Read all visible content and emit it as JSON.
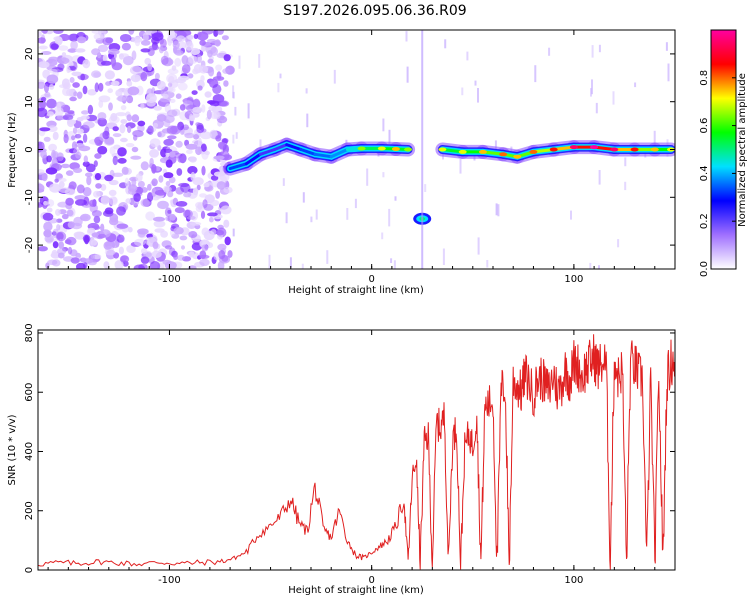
{
  "title": "S197.2026.095.06.36.R09",
  "chart_data": [
    {
      "type": "heatmap",
      "xlabel": "Height of straight line (km)",
      "ylabel": "Frequency (Hz)",
      "xlim": [
        -165,
        150
      ],
      "ylim": [
        -25,
        25
      ],
      "xticks": [
        -100,
        0,
        100
      ],
      "xtick_labels": [
        "-100",
        "0",
        "100"
      ],
      "yticks": [
        -20,
        -10,
        0,
        10,
        20
      ],
      "ytick_labels": [
        "-20",
        "-10",
        "0",
        "10",
        "20"
      ],
      "colorbar": {
        "label": "Normalized spectral amplitude",
        "range": [
          0,
          1
        ],
        "ticks": [
          0.0,
          0.2,
          0.4,
          0.6,
          0.8
        ],
        "tick_labels": [
          "0.0",
          "0.2",
          "0.4",
          "0.6",
          "0.8"
        ],
        "colormap": [
          "#ffffff",
          "#a070ff",
          "#0000ff",
          "#00e0ff",
          "#00ff00",
          "#ffff00",
          "#ff0000",
          "#ff00a0"
        ]
      },
      "noise_region_x": [
        -165,
        -70
      ],
      "gap_x": [
        22,
        30
      ],
      "outlier": {
        "x": 25,
        "y": -14.5,
        "amplitude": 0.5
      },
      "ridge": [
        {
          "x": -70,
          "y": -4,
          "amplitude": 0.35
        },
        {
          "x": -62,
          "y": -3,
          "amplitude": 0.3
        },
        {
          "x": -55,
          "y": -1,
          "amplitude": 0.25
        },
        {
          "x": -48,
          "y": 0,
          "amplitude": 0.2
        },
        {
          "x": -42,
          "y": 1,
          "amplitude": 0.25
        },
        {
          "x": -35,
          "y": 0,
          "amplitude": 0.3
        },
        {
          "x": -28,
          "y": -1,
          "amplitude": 0.35
        },
        {
          "x": -20,
          "y": -1.5,
          "amplitude": 0.35
        },
        {
          "x": -12,
          "y": 0,
          "amplitude": 0.4
        },
        {
          "x": -5,
          "y": 0.2,
          "amplitude": 0.5
        },
        {
          "x": 5,
          "y": 0.2,
          "amplitude": 0.55
        },
        {
          "x": 12,
          "y": 0.1,
          "amplitude": 0.6
        },
        {
          "x": 18,
          "y": 0,
          "amplitude": 0.5
        },
        {
          "x": 35,
          "y": 0,
          "amplitude": 0.55
        },
        {
          "x": 45,
          "y": -0.5,
          "amplitude": 0.55
        },
        {
          "x": 55,
          "y": -0.5,
          "amplitude": 0.6
        },
        {
          "x": 65,
          "y": -1,
          "amplitude": 0.65
        },
        {
          "x": 72,
          "y": -1.5,
          "amplitude": 0.6
        },
        {
          "x": 80,
          "y": -0.5,
          "amplitude": 0.65
        },
        {
          "x": 90,
          "y": 0,
          "amplitude": 0.7
        },
        {
          "x": 100,
          "y": 0.5,
          "amplitude": 0.8
        },
        {
          "x": 110,
          "y": 0.5,
          "amplitude": 0.9
        },
        {
          "x": 120,
          "y": 0,
          "amplitude": 0.8
        },
        {
          "x": 130,
          "y": 0,
          "amplitude": 0.7
        },
        {
          "x": 140,
          "y": 0,
          "amplitude": 0.6
        },
        {
          "x": 148,
          "y": 0,
          "amplitude": 0.55
        }
      ]
    },
    {
      "type": "line",
      "xlabel": "Height of straight line (km)",
      "ylabel": "SNR (10 * v/v)",
      "xlim": [
        -165,
        150
      ],
      "ylim": [
        0,
        810
      ],
      "xticks": [
        -100,
        0,
        100
      ],
      "xtick_labels": [
        "-100",
        "0",
        "100"
      ],
      "yticks": [
        0,
        200,
        400,
        600,
        800
      ],
      "ytick_labels": [
        "0",
        "200",
        "400",
        "600",
        "800"
      ],
      "color": "#e02020",
      "series": [
        {
          "name": "SNR",
          "x": [
            -165,
            -155,
            -145,
            -135,
            -125,
            -115,
            -105,
            -95,
            -85,
            -75,
            -68,
            -62,
            -56,
            -50,
            -45,
            -40,
            -36,
            -32,
            -28,
            -24,
            -20,
            -16,
            -12,
            -8,
            -4,
            0,
            4,
            8,
            12,
            16,
            18,
            20,
            22,
            24,
            26,
            28,
            30,
            32,
            34,
            36,
            38,
            40,
            42,
            44,
            46,
            48,
            50,
            52,
            54,
            56,
            58,
            60,
            62,
            64,
            66,
            68,
            70,
            72,
            74,
            76,
            78,
            80,
            82,
            84,
            86,
            88,
            90,
            92,
            94,
            96,
            98,
            100,
            102,
            104,
            106,
            108,
            110,
            112,
            114,
            116,
            118,
            120,
            122,
            124,
            126,
            128,
            130,
            132,
            134,
            136,
            138,
            140,
            142,
            144,
            146,
            148,
            150
          ],
          "y": [
            20,
            25,
            22,
            28,
            24,
            20,
            26,
            22,
            25,
            28,
            40,
            60,
            120,
            150,
            180,
            240,
            160,
            130,
            280,
            140,
            110,
            200,
            100,
            50,
            40,
            60,
            80,
            100,
            150,
            240,
            20,
            300,
            380,
            20,
            430,
            450,
            20,
            500,
            480,
            520,
            20,
            440,
            480,
            20,
            410,
            460,
            420,
            530,
            20,
            550,
            560,
            570,
            20,
            610,
            620,
            20,
            640,
            620,
            600,
            660,
            630,
            590,
            640,
            650,
            620,
            610,
            660,
            600,
            630,
            680,
            640,
            700,
            690,
            650,
            680,
            700,
            720,
            680,
            700,
            690,
            20,
            710,
            650,
            680,
            20,
            700,
            690,
            660,
            640,
            20,
            650,
            20,
            670,
            20,
            640,
            700,
            720
          ]
        }
      ]
    }
  ]
}
